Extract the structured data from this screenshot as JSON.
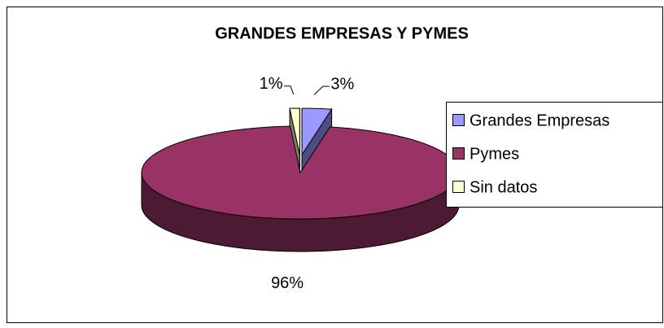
{
  "chart_data": {
    "type": "pie",
    "title": "GRANDES EMPRESAS Y PYMES",
    "categories": [
      "Grandes Empresas",
      "Pymes",
      "Sin datos"
    ],
    "values": [
      3,
      96,
      1
    ],
    "value_labels": [
      "3%",
      "96%",
      "1%"
    ],
    "colors": [
      "#9999ff",
      "#993366",
      "#ffffcc"
    ],
    "legend": "right"
  }
}
